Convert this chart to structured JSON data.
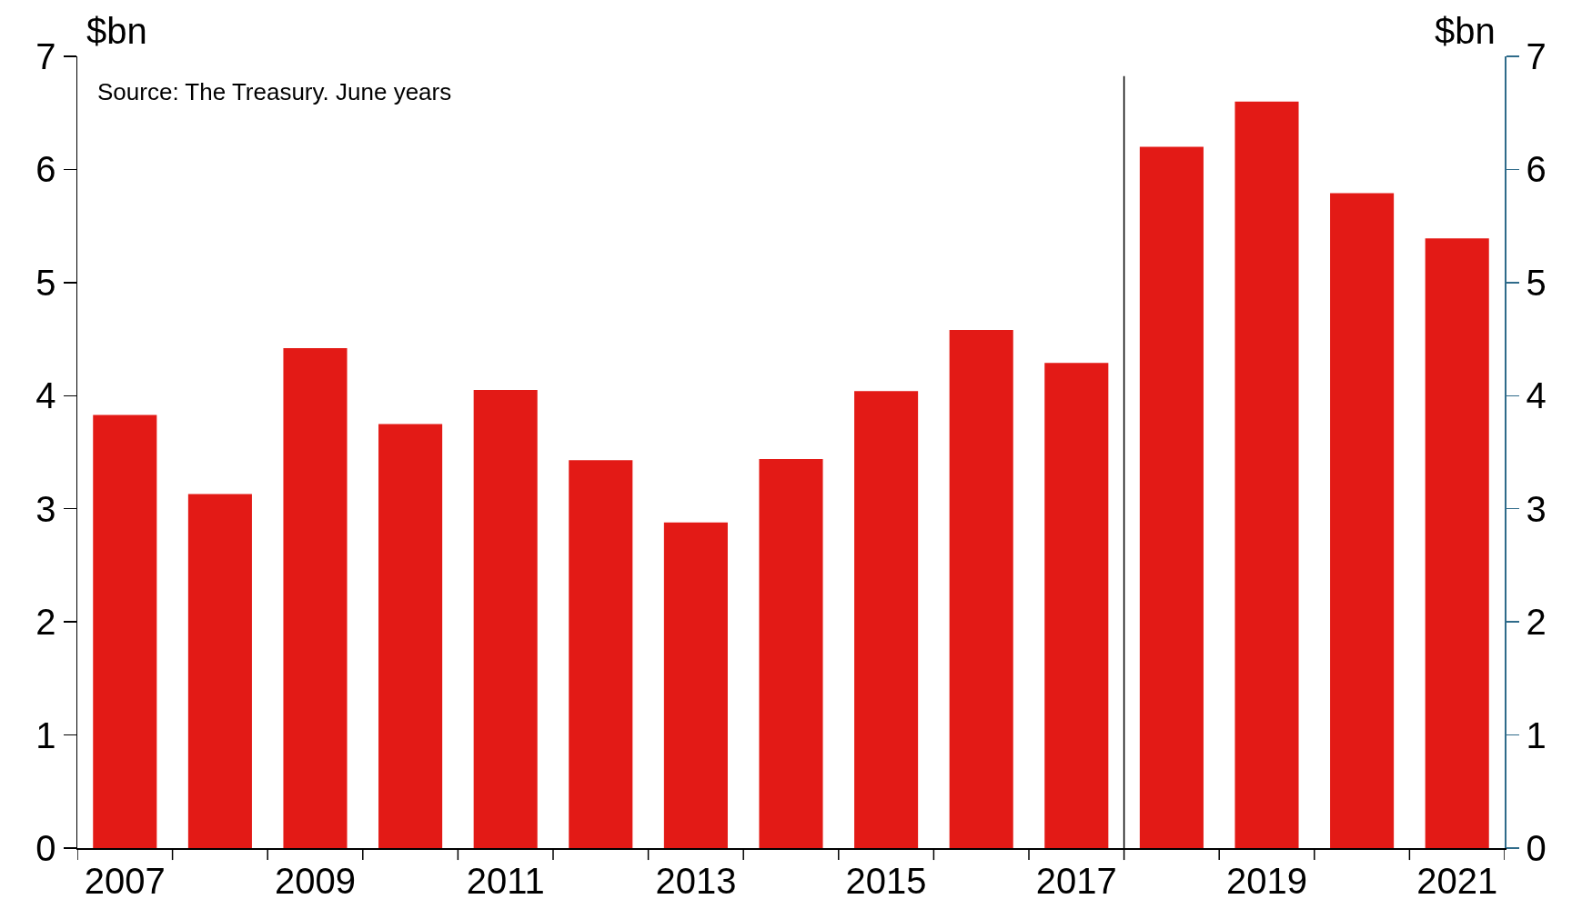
{
  "chart_data": {
    "type": "bar",
    "ylabel": "$bn",
    "y2label": "$bn",
    "x": [
      2007,
      2008,
      2009,
      2010,
      2011,
      2012,
      2013,
      2014,
      2015,
      2016,
      2017,
      2018,
      2019,
      2020,
      2021
    ],
    "values": [
      3.83,
      3.13,
      4.42,
      3.75,
      4.05,
      3.43,
      2.88,
      3.44,
      4.04,
      4.58,
      4.29,
      6.2,
      6.6,
      5.79,
      5.39
    ],
    "color": "#e31a16",
    "xlim": [
      2006.5,
      2021.5
    ],
    "xticks": [
      {
        "value": 2006.5,
        "label": null
      },
      2007,
      {
        "value": 2007.5,
        "label": null
      },
      {
        "value": 2008.5,
        "label": null
      },
      2009,
      {
        "value": 2009.5,
        "label": null
      },
      {
        "value": 2010.5,
        "label": null
      },
      2011,
      {
        "value": 2011.5,
        "label": null
      },
      {
        "value": 2012.5,
        "label": null
      },
      2013,
      {
        "value": 2013.5,
        "label": null
      },
      {
        "value": 2014.5,
        "label": null
      },
      2015,
      {
        "value": 2015.5,
        "label": null
      },
      {
        "value": 2016.5,
        "label": null
      },
      2017,
      {
        "value": 2017.5,
        "label": null
      },
      {
        "value": 2018.5,
        "label": null
      },
      2019,
      {
        "value": 2019.5,
        "label": null
      },
      {
        "value": 2020.5,
        "label": null
      },
      2021,
      {
        "value": 2021.5,
        "label": null
      }
    ],
    "ylim": [
      0,
      7
    ],
    "yticks": [
      0,
      1,
      2,
      3,
      4,
      5,
      6,
      7
    ],
    "y2lim": [
      0,
      7
    ],
    "y2ticks": [
      0,
      1,
      2,
      3,
      4,
      5,
      6,
      7
    ],
    "ref_lines": [
      {
        "axis": "x",
        "value": 2017.5,
        "color": "#000000"
      }
    ],
    "annotations": [
      "Source: The Treasury. June years"
    ]
  }
}
